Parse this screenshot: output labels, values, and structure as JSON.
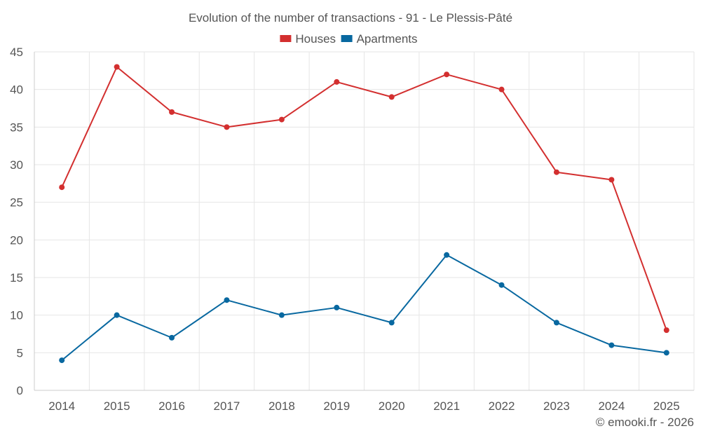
{
  "chart_data": {
    "type": "line",
    "title": "Evolution of the number of transactions - 91 - Le Plessis-Pâté",
    "categories": [
      "2014",
      "2015",
      "2016",
      "2017",
      "2018",
      "2019",
      "2020",
      "2021",
      "2022",
      "2023",
      "2024",
      "2025"
    ],
    "series": [
      {
        "name": "Houses",
        "color": "#d32f2f",
        "values": [
          27,
          43,
          37,
          35,
          36,
          41,
          39,
          42,
          40,
          29,
          28,
          8
        ]
      },
      {
        "name": "Apartments",
        "color": "#0868a0",
        "values": [
          4,
          10,
          7,
          12,
          10,
          11,
          9,
          18,
          14,
          9,
          6,
          5
        ]
      }
    ],
    "xlabel": "",
    "ylabel": "",
    "ylim": [
      0,
      45
    ],
    "yticks": [
      "0",
      "5",
      "10",
      "15",
      "20",
      "25",
      "30",
      "35",
      "40",
      "45"
    ],
    "grid": true,
    "legend_position": "top-center"
  },
  "footer": {
    "credit": "© emooki.fr - 2026"
  }
}
